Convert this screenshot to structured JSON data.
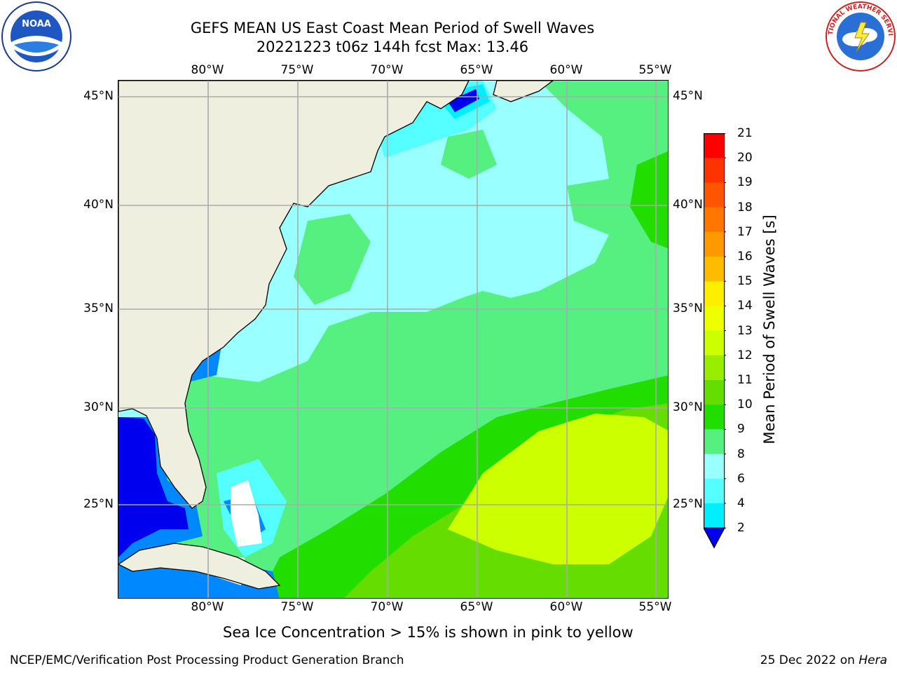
{
  "title": {
    "line1": "GEFS MEAN US East Coast Mean Period of Swell Waves",
    "line2": "20221223 t06z 144h fcst   Max: 13.46"
  },
  "axes": {
    "lon_labels": [
      "80°W",
      "75°W",
      "70°W",
      "65°W",
      "60°W",
      "55°W"
    ],
    "lat_labels": [
      "45°N",
      "40°N",
      "35°N",
      "30°N",
      "25°N"
    ]
  },
  "colorbar": {
    "label": "Mean Period of Swell Waves [s]",
    "ticks": [
      "21",
      "20",
      "19",
      "18",
      "17",
      "16",
      "15",
      "14",
      "13",
      "12",
      "11",
      "10",
      "9",
      "8",
      "6",
      "4",
      "2"
    ],
    "colors": [
      "#ff0000",
      "#ff3300",
      "#ff5500",
      "#ff7700",
      "#ff9900",
      "#ffbb00",
      "#ffee00",
      "#eeff00",
      "#ccff00",
      "#99ee00",
      "#66dd00",
      "#22dd00",
      "#55f080",
      "#99ffff",
      "#55ffff",
      "#00eeff",
      "#0088ff",
      "#0000ee"
    ]
  },
  "map": {
    "land_color": "#efefdf",
    "background_color": "#99ffff"
  },
  "note": "Sea Ice Concentration > 15% is shown in pink to yellow",
  "footer": {
    "left": "NCEP/EMC/Verification Post Processing Product Generation Branch",
    "date": "25 Dec 2022 on ",
    "host": "Hera"
  },
  "logos": {
    "left": "NOAA",
    "right": "NATIONAL WEATHER SERVICE"
  }
}
